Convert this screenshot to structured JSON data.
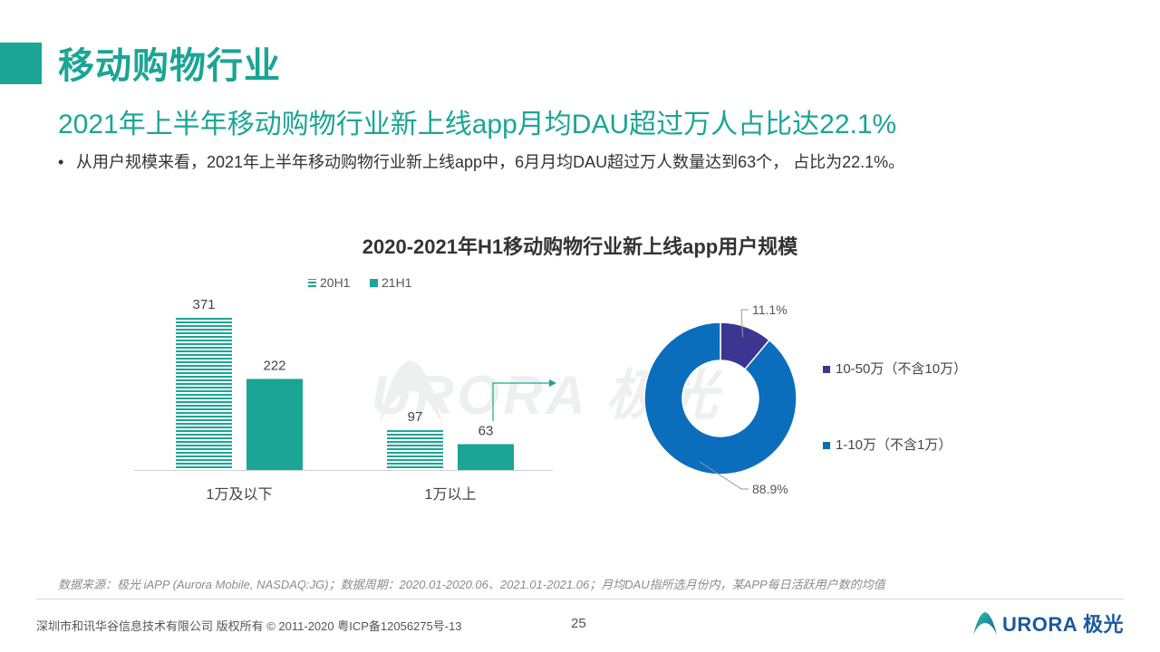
{
  "page": {
    "title": "移动购物行业",
    "subtitle": "2021年上半年移动购物行业新上线app月均DAU超过万人占比达22.1%",
    "bullet": "从用户规模来看，2021年上半年移动购物行业新上线app中，6月月均DAU超过万人数量达到63个， 占比为22.1%。",
    "bullet_marker": "•",
    "chart_title": "2020-2021年H1移动购物行业新上线app用户规模",
    "watermark": "URORA 极光",
    "source_note": "数据来源：极光 iAPP (Aurora Mobile, NASDAQ:JG)；数据周期：2020.01-2020.06、2021.01-2021.06；月均DAU指所选月份内，某APP每日活跃用户数的均值",
    "footer_company": "深圳市和讯华谷信息技术有限公司  版权所有 © 2011-2020 粤ICP备12056275号-13",
    "page_number": "25",
    "footer_brand": "URORA 极光"
  },
  "colors": {
    "accent": "#1aa595",
    "series_20h1": "#1aa595",
    "series_21h1": "#1aa595",
    "donut_dark": "#3d3592",
    "donut_blue": "#0a6ebd",
    "brand_blue": "#1a5a9c"
  },
  "chart_data": [
    {
      "type": "bar",
      "categories": [
        "1万及以下",
        "1万以上"
      ],
      "series": [
        {
          "name": "20H1",
          "values": [
            371,
            97
          ],
          "pattern": "horizontal-stripes"
        },
        {
          "name": "21H1",
          "values": [
            222,
            63
          ],
          "pattern": "solid"
        }
      ],
      "ylim": [
        0,
        371
      ],
      "legend": "top-left",
      "grid": false
    },
    {
      "type": "pie",
      "variant": "donut",
      "slices": [
        {
          "name": "10-50万（不含10万）",
          "value": 11.1,
          "label": "11.1%"
        },
        {
          "name": "1-10万（不含1万）",
          "value": 88.9,
          "label": "88.9%"
        }
      ],
      "legend": "right"
    }
  ]
}
